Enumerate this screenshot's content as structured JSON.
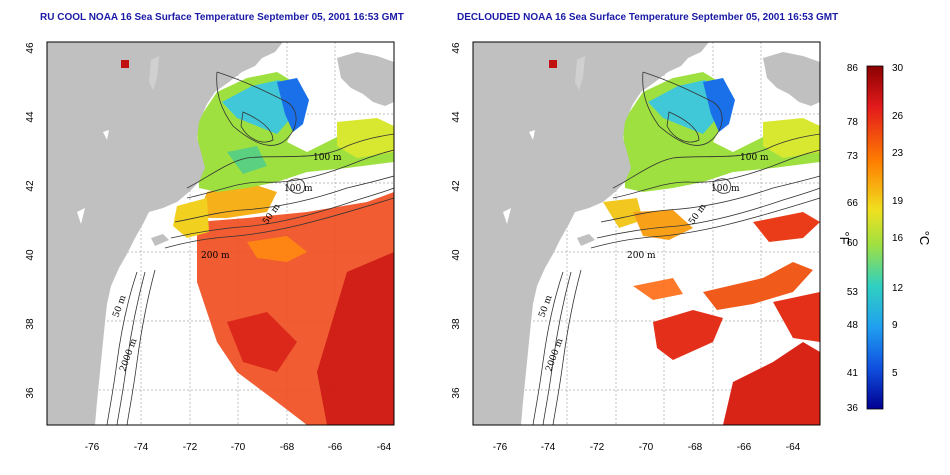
{
  "titles": {
    "left": "RU COOL NOAA 16 Sea Surface Temperature September 05, 2001 16:53 GMT",
    "right": "DECLOUDED NOAA 16 Sea Surface Temperature September 05, 2001 16:53 GMT"
  },
  "axes": {
    "lon_ticks": [
      "-76",
      "-74",
      "-72",
      "-70",
      "-68",
      "-66",
      "-64"
    ],
    "lat_ticks": [
      "46",
      "44",
      "42",
      "40",
      "38",
      "36"
    ]
  },
  "contour_labels": {
    "left": [
      "100 m",
      "100 m",
      "50 m",
      "200 m",
      "50 m",
      "2000 m"
    ],
    "right": [
      "100 m",
      "100 m",
      "50 m",
      "200 m",
      "50 m",
      "2000 m"
    ]
  },
  "colorbar": {
    "fahrenheit_ticks": [
      "86",
      "78",
      "73",
      "66",
      "60",
      "53",
      "48",
      "41",
      "36"
    ],
    "celsius_ticks": [
      "30",
      "26",
      "23",
      "19",
      "16",
      "12",
      "9",
      "5"
    ],
    "fahrenheit_unit": "°F",
    "celsius_unit": "°C",
    "stops": [
      "#8b0000",
      "#e31a1c",
      "#ff7f00",
      "#f0e020",
      "#a0e040",
      "#30d0c0",
      "#20a0f0",
      "#1050e0",
      "#000090"
    ]
  },
  "colors": {
    "land": "#c0c0c0",
    "title": "#1a1aa6",
    "grid": "#aaaaaa"
  }
}
